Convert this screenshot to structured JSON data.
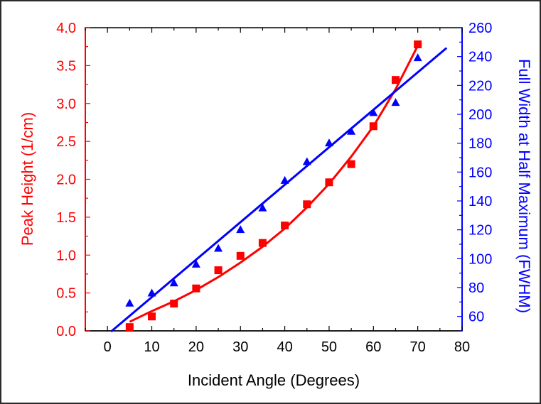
{
  "chart_data": {
    "type": "scatter",
    "title": "",
    "xlabel": "Incident Angle (Degrees)",
    "ylabel_left": "Peak Height (1/cm)",
    "ylabel_right": "Full Width at Half Maximum (FWHM)",
    "xlim": [
      -5,
      80
    ],
    "ylim_left": [
      0,
      4
    ],
    "ylim_right": [
      50,
      260
    ],
    "x_ticks": [
      0,
      10,
      20,
      30,
      40,
      50,
      60,
      70,
      80
    ],
    "y_left_ticks": [
      "0.0",
      "0.5",
      "1.0",
      "1.5",
      "2.0",
      "2.5",
      "3.0",
      "3.5",
      "4.0"
    ],
    "y_right_ticks": [
      60,
      80,
      100,
      120,
      140,
      160,
      180,
      200,
      220,
      240,
      260
    ],
    "grid": false,
    "series": [
      {
        "axis": "left",
        "marker": "square",
        "color": "#ff0000",
        "x": [
          5,
          10,
          15,
          20,
          25,
          30,
          35,
          40,
          45,
          50,
          55,
          60,
          65,
          70
        ],
        "y": [
          0.05,
          0.19,
          0.36,
          0.56,
          0.8,
          0.99,
          1.16,
          1.39,
          1.67,
          1.96,
          2.2,
          2.7,
          3.31,
          3.78
        ],
        "fit": {
          "kind": "curve",
          "x": [
            5,
            10,
            15,
            20,
            25,
            30,
            35,
            40,
            45,
            50,
            55,
            60,
            65,
            70
          ],
          "y": [
            0.12,
            0.26,
            0.39,
            0.54,
            0.71,
            0.9,
            1.11,
            1.35,
            1.63,
            1.94,
            2.3,
            2.7,
            3.19,
            3.76
          ]
        }
      },
      {
        "axis": "right",
        "marker": "triangle",
        "color": "#0000ff",
        "x": [
          5,
          10,
          15,
          20,
          25,
          30,
          35,
          40,
          45,
          50,
          55,
          60,
          65,
          70
        ],
        "y": [
          69,
          76,
          83,
          96,
          107,
          120,
          135,
          154,
          167,
          180,
          188,
          201,
          208,
          239
        ],
        "fit": {
          "kind": "line",
          "x": [
            0.8,
            76.5
          ],
          "y": [
            49.5,
            246
          ]
        }
      }
    ]
  }
}
